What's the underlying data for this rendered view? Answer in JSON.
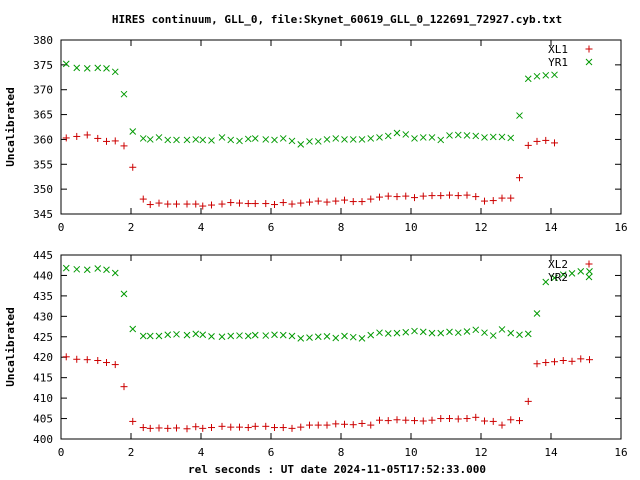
{
  "title": "HIRES continuum, GLL_0, file:Skynet_60619_GLL_0_122691_72927.cyb.txt",
  "xlabel": "rel seconds : UT date 2024-11-05T17:52:33.000",
  "colors": {
    "red": "#cc0000",
    "green": "#009900"
  },
  "chart_data": [
    {
      "type": "scatter",
      "ylabel": "Uncalibrated",
      "xlim": [
        0,
        16
      ],
      "ylim": [
        345,
        380
      ],
      "xticks": [
        0,
        2,
        4,
        6,
        8,
        10,
        12,
        14,
        16
      ],
      "yticks": [
        345,
        350,
        355,
        360,
        365,
        370,
        375,
        380
      ],
      "grid": false,
      "legend": "top-right",
      "x": [
        0.15,
        0.45,
        0.75,
        1.05,
        1.3,
        1.55,
        1.8,
        2.05,
        2.35,
        2.55,
        2.8,
        3.05,
        3.3,
        3.6,
        3.85,
        4.05,
        4.3,
        4.6,
        4.85,
        5.1,
        5.35,
        5.55,
        5.85,
        6.1,
        6.35,
        6.6,
        6.85,
        7.1,
        7.35,
        7.6,
        7.85,
        8.1,
        8.35,
        8.6,
        8.85,
        9.1,
        9.35,
        9.6,
        9.85,
        10.1,
        10.35,
        10.6,
        10.85,
        11.1,
        11.35,
        11.6,
        11.85,
        12.1,
        12.35,
        12.6,
        12.85,
        13.1,
        13.35,
        13.6,
        13.85,
        14.1,
        14.35,
        14.6,
        14.85,
        15.1
      ],
      "series": [
        {
          "name": "XL1",
          "marker": "+",
          "color": "#cc0000",
          "values": [
            360.3,
            360.6,
            360.9,
            360.2,
            359.6,
            359.7,
            358.7,
            354.4,
            348.0,
            346.9,
            347.2,
            347.0,
            347.0,
            347.0,
            347.0,
            346.6,
            346.8,
            347.0,
            347.3,
            347.2,
            347.1,
            347.1,
            347.1,
            346.9,
            347.3,
            347.0,
            347.2,
            347.4,
            347.6,
            347.4,
            347.6,
            347.8,
            347.5,
            347.5,
            348.0,
            348.4,
            348.6,
            348.5,
            348.6,
            348.3,
            348.6,
            348.7,
            348.7,
            348.8,
            348.7,
            348.8,
            348.5,
            347.6,
            347.7,
            348.2,
            348.2,
            352.3,
            358.8,
            359.6,
            359.8,
            359.3,
            359.6,
            359.5,
            359.6,
            359.6
          ],
          "plot_range": [
            0,
            56
          ]
        },
        {
          "name": "YR1",
          "marker": "x",
          "color": "#009900",
          "values": [
            375.2,
            374.4,
            374.3,
            374.4,
            374.3,
            373.6,
            369.1,
            361.6,
            360.2,
            360.0,
            360.4,
            359.9,
            359.9,
            359.9,
            360.0,
            359.9,
            359.8,
            360.4,
            359.9,
            359.7,
            360.1,
            360.2,
            360.0,
            359.9,
            360.2,
            359.7,
            359.0,
            359.6,
            359.6,
            360.0,
            360.2,
            360.0,
            360.0,
            360.0,
            360.2,
            360.4,
            360.7,
            361.3,
            361.0,
            360.2,
            360.4,
            360.4,
            359.9,
            360.8,
            360.9,
            360.8,
            360.7,
            360.4,
            360.5,
            360.5,
            360.3,
            364.8,
            372.2,
            372.7,
            372.9,
            373.0,
            373.9,
            373.4,
            374.1,
            375.3
          ],
          "plot_range": [
            0,
            56
          ]
        }
      ]
    },
    {
      "type": "scatter",
      "ylabel": "Uncalibrated",
      "xlim": [
        0,
        16
      ],
      "ylim": [
        400,
        445
      ],
      "xticks": [
        0,
        2,
        4,
        6,
        8,
        10,
        12,
        14,
        16
      ],
      "yticks": [
        400,
        405,
        410,
        415,
        420,
        425,
        430,
        435,
        440,
        445
      ],
      "grid": false,
      "legend": "top-right",
      "x": [
        0.15,
        0.45,
        0.75,
        1.05,
        1.3,
        1.55,
        1.8,
        2.05,
        2.35,
        2.55,
        2.8,
        3.05,
        3.3,
        3.6,
        3.85,
        4.05,
        4.3,
        4.6,
        4.85,
        5.1,
        5.35,
        5.55,
        5.85,
        6.1,
        6.35,
        6.6,
        6.85,
        7.1,
        7.35,
        7.6,
        7.85,
        8.1,
        8.35,
        8.6,
        8.85,
        9.1,
        9.35,
        9.6,
        9.85,
        10.1,
        10.35,
        10.6,
        10.85,
        11.1,
        11.35,
        11.6,
        11.85,
        12.1,
        12.35,
        12.6,
        12.85,
        13.1,
        13.35,
        13.6,
        13.85,
        14.1,
        14.35,
        14.6,
        14.85,
        15.1
      ],
      "series": [
        {
          "name": "XL2",
          "marker": "+",
          "color": "#cc0000",
          "values": [
            420.1,
            419.5,
            419.4,
            419.2,
            418.7,
            418.2,
            412.8,
            404.3,
            402.8,
            402.6,
            402.7,
            402.6,
            402.7,
            402.5,
            403.0,
            402.6,
            402.8,
            403.1,
            402.9,
            402.9,
            402.8,
            403.1,
            403.1,
            402.8,
            402.8,
            402.6,
            402.9,
            403.4,
            403.4,
            403.4,
            403.7,
            403.6,
            403.5,
            403.8,
            403.4,
            404.6,
            404.5,
            404.7,
            404.6,
            404.5,
            404.4,
            404.6,
            405.0,
            405.0,
            404.9,
            405.0,
            405.3,
            404.4,
            404.3,
            403.4,
            404.7,
            404.5,
            409.2,
            418.4,
            418.7,
            418.9,
            419.2,
            419.0,
            419.6,
            419.4
          ],
          "plot_range": [
            0,
            60
          ]
        },
        {
          "name": "YR2",
          "marker": "x",
          "color": "#009900",
          "values": [
            441.8,
            441.5,
            441.4,
            441.7,
            441.4,
            440.6,
            435.5,
            426.9,
            425.2,
            425.2,
            425.2,
            425.5,
            425.6,
            425.4,
            425.7,
            425.5,
            425.1,
            425.0,
            425.2,
            425.3,
            425.2,
            425.4,
            425.3,
            425.5,
            425.4,
            425.2,
            424.6,
            424.8,
            425.0,
            425.1,
            424.7,
            425.2,
            424.9,
            424.6,
            425.4,
            426.0,
            425.8,
            425.9,
            426.1,
            426.4,
            426.2,
            425.9,
            425.9,
            426.2,
            426.0,
            426.3,
            426.7,
            426.0,
            425.3,
            426.8,
            425.9,
            425.5,
            425.7,
            430.7,
            438.4,
            439.4,
            440.2,
            440.5,
            441.0,
            441.0
          ],
          "plot_range": [
            0,
            60
          ]
        }
      ]
    }
  ]
}
